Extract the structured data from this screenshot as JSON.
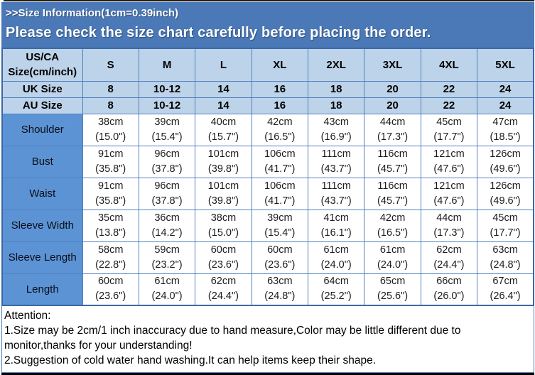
{
  "header": {
    "title": ">>Size Information(1cm=0.39inch)",
    "subtitle": "Please check the size chart carefully before placing the order."
  },
  "table": {
    "corner": {
      "line1": "US/CA",
      "line2": "Size(cm/inch)"
    },
    "size_columns": [
      "S",
      "M",
      "L",
      "XL",
      "2XL",
      "3XL",
      "4XL",
      "5XL"
    ],
    "uk_row": {
      "label": "UK Size",
      "values": [
        "8",
        "10-12",
        "14",
        "16",
        "18",
        "20",
        "22",
        "24"
      ]
    },
    "au_row": {
      "label": "AU Size",
      "values": [
        "8",
        "10-12",
        "14",
        "16",
        "18",
        "20",
        "22",
        "24"
      ]
    },
    "measurement_rows": [
      {
        "label": "Shoulder",
        "values": [
          {
            "cm": "38cm",
            "inch": "(15.0\")"
          },
          {
            "cm": "39cm",
            "inch": "(15.4\")"
          },
          {
            "cm": "40cm",
            "inch": "(15.7\")"
          },
          {
            "cm": "42cm",
            "inch": "(16.5\")"
          },
          {
            "cm": "43cm",
            "inch": "(16.9\")"
          },
          {
            "cm": "44cm",
            "inch": "(17.3\")"
          },
          {
            "cm": "45cm",
            "inch": "(17.7\")"
          },
          {
            "cm": "47cm",
            "inch": "(18.5\")"
          }
        ]
      },
      {
        "label": "Bust",
        "values": [
          {
            "cm": "91cm",
            "inch": "(35.8\")"
          },
          {
            "cm": "96cm",
            "inch": "(37.8\")"
          },
          {
            "cm": "101cm",
            "inch": "(39.8\")"
          },
          {
            "cm": "106cm",
            "inch": "(41.7\")"
          },
          {
            "cm": "111cm",
            "inch": "(43.7\")"
          },
          {
            "cm": "116cm",
            "inch": "(45.7\")"
          },
          {
            "cm": "121cm",
            "inch": "(47.6\")"
          },
          {
            "cm": "126cm",
            "inch": "(49.6\")"
          }
        ]
      },
      {
        "label": "Waist",
        "values": [
          {
            "cm": "91cm",
            "inch": "(35.8\")"
          },
          {
            "cm": "96cm",
            "inch": "(37.8\")"
          },
          {
            "cm": "101cm",
            "inch": "(39.8\")"
          },
          {
            "cm": "106cm",
            "inch": "(41.7\")"
          },
          {
            "cm": "111cm",
            "inch": "(43.7\")"
          },
          {
            "cm": "116cm",
            "inch": "(45.7\")"
          },
          {
            "cm": "121cm",
            "inch": "(47.6\")"
          },
          {
            "cm": "126cm",
            "inch": "(49.6\")"
          }
        ]
      },
      {
        "label": "Sleeve Width",
        "values": [
          {
            "cm": "35cm",
            "inch": "(13.8\")"
          },
          {
            "cm": "36cm",
            "inch": "(14.2\")"
          },
          {
            "cm": "38cm",
            "inch": "(15.0\")"
          },
          {
            "cm": "39cm",
            "inch": "(15.4\")"
          },
          {
            "cm": "41cm",
            "inch": "(16.1\")"
          },
          {
            "cm": "42cm",
            "inch": "(16.5\")"
          },
          {
            "cm": "44cm",
            "inch": "(17.3\")"
          },
          {
            "cm": "45cm",
            "inch": "(17.7\")"
          }
        ]
      },
      {
        "label": "Sleeve Length",
        "values": [
          {
            "cm": "58cm",
            "inch": "(22.8\")"
          },
          {
            "cm": "59cm",
            "inch": "(23.2\")"
          },
          {
            "cm": "60cm",
            "inch": "(23.6\")"
          },
          {
            "cm": "60cm",
            "inch": "(23.6\")"
          },
          {
            "cm": "61cm",
            "inch": "(24.0\")"
          },
          {
            "cm": "61cm",
            "inch": "(24.0\")"
          },
          {
            "cm": "62cm",
            "inch": "(24.4\")"
          },
          {
            "cm": "63cm",
            "inch": "(24.8\")"
          }
        ]
      },
      {
        "label": "Length",
        "values": [
          {
            "cm": "60cm",
            "inch": "(23.6\")"
          },
          {
            "cm": "61cm",
            "inch": "(24.0\")"
          },
          {
            "cm": "62cm",
            "inch": "(24.4\")"
          },
          {
            "cm": "63cm",
            "inch": "(24.8\")"
          },
          {
            "cm": "64cm",
            "inch": "(25.2\")"
          },
          {
            "cm": "65cm",
            "inch": "(25.6\")"
          },
          {
            "cm": "66cm",
            "inch": "(26.0\")"
          },
          {
            "cm": "67cm",
            "inch": "(26.4\")"
          }
        ]
      }
    ]
  },
  "attention": {
    "title": "Attention:",
    "notes": [
      "1.Size may be 2cm/1 inch inaccuracy due to hand measure,Color may be little different due to monitor,thanks for your understanding!",
      "2.Suggestion of cold water hand washing.It can help items keep their shape."
    ]
  },
  "colors": {
    "banner-blue": "#4b79b7",
    "label-blue": "#5b93d5",
    "header-light-blue": "#bdd3ea",
    "border-blue": "#4f81bd",
    "outer-border": "#3a69a7"
  }
}
